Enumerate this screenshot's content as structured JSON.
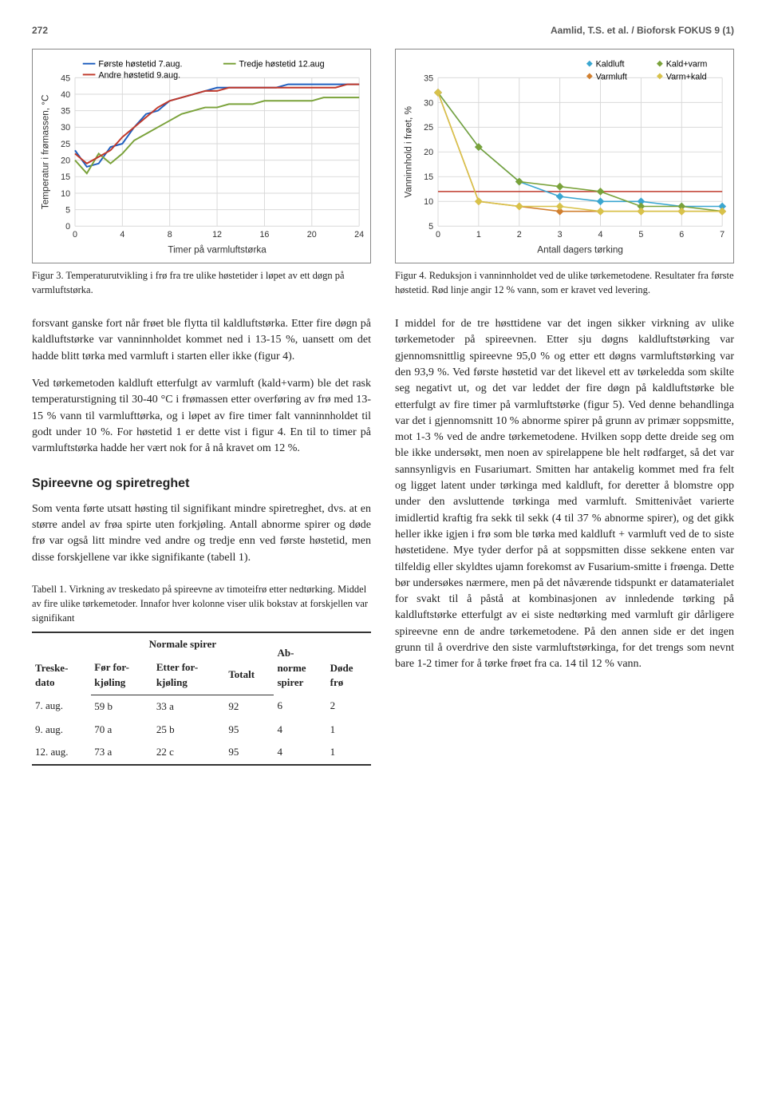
{
  "header": {
    "page_number": "272",
    "running_head": "Aamlid, T.S. et al. / Bioforsk FOKUS  9 (1)"
  },
  "fig3": {
    "type": "line",
    "x_title": "Timer på varmluftstørka",
    "y_title": "Temperatur i frømassen, °C",
    "xlim": [
      0,
      24
    ],
    "ylim": [
      0,
      45
    ],
    "xtick_step": 4,
    "ytick_step": 5,
    "grid_color": "#d9d9d9",
    "background_color": "#ffffff",
    "line_width": 2,
    "series": [
      {
        "label": "Første høstetid 7.aug.",
        "color": "#1f5fbf",
        "x": [
          0,
          1,
          2,
          3,
          4,
          5,
          6,
          7,
          8,
          9,
          10,
          11,
          12,
          13,
          14,
          15,
          16,
          17,
          18,
          19,
          20,
          21,
          22,
          23,
          24
        ],
        "y": [
          23,
          18,
          19,
          24,
          25,
          30,
          34,
          35,
          38,
          39,
          40,
          41,
          42,
          42,
          42,
          42,
          42,
          42,
          43,
          43,
          43,
          43,
          43,
          43,
          43
        ]
      },
      {
        "label": "Tredje høstetid 12.aug",
        "color": "#7aa23a",
        "x": [
          0,
          1,
          2,
          3,
          4,
          5,
          6,
          7,
          8,
          9,
          10,
          11,
          12,
          13,
          14,
          15,
          16,
          17,
          18,
          19,
          20,
          21,
          22,
          23,
          24
        ],
        "y": [
          20,
          16,
          22,
          19,
          22,
          26,
          28,
          30,
          32,
          34,
          35,
          36,
          36,
          37,
          37,
          37,
          38,
          38,
          38,
          38,
          38,
          39,
          39,
          39,
          39
        ]
      },
      {
        "label": "Andre høstetid 9.aug.",
        "color": "#c0392b",
        "x": [
          0,
          1,
          2,
          3,
          4,
          5,
          6,
          7,
          8,
          9,
          10,
          11,
          12,
          13,
          14,
          15,
          16,
          17,
          18,
          19,
          20,
          21,
          22,
          23,
          24
        ],
        "y": [
          22,
          19,
          21,
          23,
          27,
          30,
          33,
          36,
          38,
          39,
          40,
          41,
          41,
          42,
          42,
          42,
          42,
          42,
          42,
          42,
          42,
          42,
          42,
          43,
          43
        ]
      }
    ],
    "caption": "Figur 3. Temperaturutvikling i frø fra tre ulike høstetider i løpet av ett døgn på varmluftstørka."
  },
  "fig4": {
    "type": "line-marker",
    "x_title": "Antall dagers tørking",
    "y_title": "Vanninnhold i frøet, %",
    "xlim": [
      0,
      7
    ],
    "ylim": [
      5,
      35
    ],
    "xtick_step": 1,
    "ytick_step": 5,
    "grid_color": "#d9d9d9",
    "background_color": "#ffffff",
    "line_width": 1.6,
    "marker_size": 5,
    "threshold": {
      "value": 12,
      "color": "#c0392b"
    },
    "series": [
      {
        "label": "Kaldluft",
        "color": "#3aa6d0",
        "marker": "diamond",
        "x": [
          0,
          1,
          2,
          3,
          4,
          5,
          6,
          7
        ],
        "y": [
          32,
          21,
          14,
          11,
          10,
          10,
          9,
          9
        ]
      },
      {
        "label": "Kald+varm",
        "color": "#7aa23a",
        "marker": "diamond",
        "x": [
          0,
          1,
          2,
          3,
          4,
          5,
          6,
          7
        ],
        "y": [
          32,
          21,
          14,
          13,
          12,
          9,
          9,
          8
        ]
      },
      {
        "label": "Varmluft",
        "color": "#d17f2f",
        "marker": "diamond",
        "x": [
          0,
          1,
          2,
          3,
          4,
          5,
          6,
          7
        ],
        "y": [
          32,
          10,
          9,
          8,
          8,
          8,
          8,
          8
        ]
      },
      {
        "label": "Varm+kald",
        "color": "#d8c24a",
        "marker": "diamond",
        "x": [
          0,
          1,
          2,
          3,
          4,
          5,
          6,
          7
        ],
        "y": [
          32,
          10,
          9,
          9,
          8,
          8,
          8,
          8
        ]
      }
    ],
    "caption": "Figur 4. Reduksjon i vanninnholdet ved de ulike tørkemetodene. Resultater fra første høstetid. Rød linje angir 12 % vann, som er kravet ved levering."
  },
  "body": {
    "left_p1": "forsvant ganske fort når frøet ble flytta til kaldluftstørka. Etter fire døgn på kaldluftstørke var vanninnholdet kommet ned i 13-15 %, uansett om det hadde blitt tørka med varmluft i starten eller ikke (figur 4).",
    "left_p2": "Ved tørkemetoden kaldluft etterfulgt av varmluft (kald+varm) ble det rask temperaturstigning til 30-40 °C i frømassen etter overføring av frø med 13-15 % vann til varmlufttørka, og i løpet av fire timer falt vanninnholdet til godt under 10 %. For høstetid 1 er dette vist i figur 4. En til to timer på varmluftstørka hadde her vært nok for å nå kravet om 12 %.",
    "section_title": "Spireevne og spiretreghet",
    "left_p3": "Som venta førte utsatt høsting til signifikant mindre spiretreghet, dvs. at en større andel av frøa spirte uten forkjøling. Antall abnorme spirer og døde frø var også litt mindre ved andre og tredje enn ved første høstetid, men disse forskjellene var ikke signifikante (tabell 1).",
    "right_p1": "I middel for de tre høsttidene var det ingen sikker virkning av ulike tørkemetoder på spireevnen. Etter sju døgns kaldluftstørking var gjennomsnittlig spireevne 95,0 % og etter ett døgns varmluftstørking var den 93,9 %. Ved første høstetid var det likevel ett av tørkeledda som skilte seg negativt ut, og det var leddet der fire døgn på kaldluftstørke ble etterfulgt av fire timer på varmluftstørke (figur 5). Ved denne behandlinga var det i gjennomsnitt 10 % abnorme spirer på grunn av primær soppsmitte, mot 1-3 % ved de andre tørkemetodene. Hvilken sopp dette dreide seg om ble ikke undersøkt, men noen av spirelappene ble helt rødfarget, så det var sannsynligvis en Fusariumart. Smitten har antakelig kommet med fra felt og ligget latent under tørkinga med kaldluft, for deretter å blomstre opp under den avsluttende tørkinga med varmluft. Smittenivået varierte imidlertid kraftig fra sekk til sekk (4 til 37 % abnorme spirer), og det gikk heller ikke igjen i frø som ble tørka med kaldluft + varmluft ved de to siste høstetidene. Mye tyder derfor på at soppsmitten disse sekkene enten var tilfeldig eller skyldtes ujamn forekomst av Fusarium-smitte i frøenga. Dette bør undersøkes nærmere, men på det nåværende tidspunkt er datamaterialet for svakt til å påstå at kombinasjonen av innledende tørking på kaldluftstørke etterfulgt av ei siste nedtørking med varmluft gir dårligere spireevne enn de andre tørkemetodene. På den annen side er det ingen grunn til å overdrive den siste varmluftstørkinga, for det trengs som nevnt bare 1-2 timer for å tørke frøet fra ca. 14 til 12 % vann."
  },
  "table1": {
    "caption": "Tabell 1. Virkning av treskedato på spireevne av timoteifrø etter nedtørking. Middel av fire ulike tørkemetoder. Innafor hver kolonne viser ulik bokstav at forskjellen var signifikant",
    "headers": {
      "col0": "Treske-\ndato",
      "group": "Normale spirer",
      "sub1": "Før for-\nkjøling",
      "sub2": "Etter for-\nkjøling",
      "sub3": "Totalt",
      "col4": "Ab-\nnorme\nspirer",
      "col5": "Døde\nfrø"
    },
    "rows": [
      {
        "dato": "7. aug.",
        "c1": "59 b",
        "c2": "33 a",
        "c3": "92",
        "c4": "6",
        "c5": "2"
      },
      {
        "dato": "9. aug.",
        "c1": "70 a",
        "c2": "25 b",
        "c3": "95",
        "c4": "4",
        "c5": "1"
      },
      {
        "dato": "12. aug.",
        "c1": "73 a",
        "c2": "22 c",
        "c3": "95",
        "c4": "4",
        "c5": "1"
      }
    ]
  }
}
